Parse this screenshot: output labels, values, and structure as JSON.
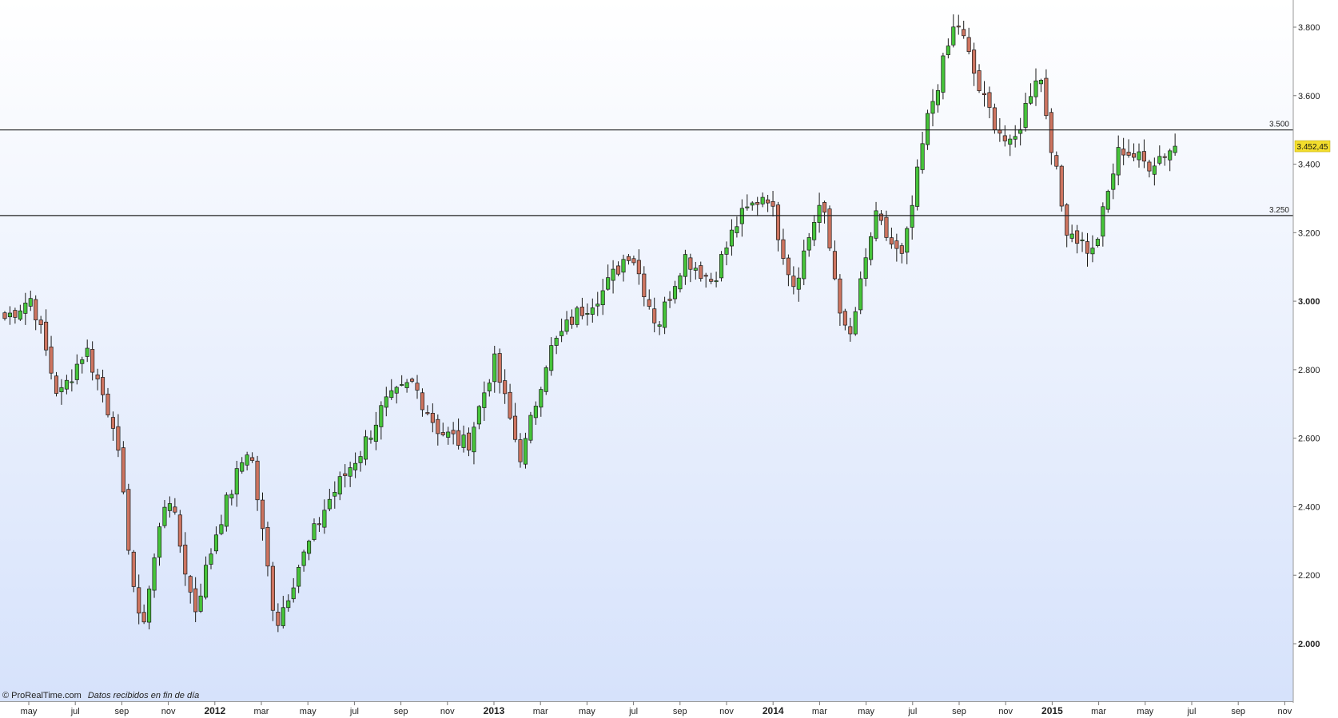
{
  "chart_data": {
    "type": "candlestick",
    "interval": "weekly",
    "y_axis": {
      "range": [
        1880,
        3880
      ],
      "ticks": [
        {
          "value": 2000,
          "label": "2.000",
          "bold": true
        },
        {
          "value": 2200,
          "label": "2.200",
          "bold": false
        },
        {
          "value": 2400,
          "label": "2.400",
          "bold": false
        },
        {
          "value": 2600,
          "label": "2.600",
          "bold": false
        },
        {
          "value": 2800,
          "label": "2.800",
          "bold": false
        },
        {
          "value": 3000,
          "label": "3.000",
          "bold": true
        },
        {
          "value": 3200,
          "label": "3.200",
          "bold": false
        },
        {
          "value": 3400,
          "label": "3.400",
          "bold": false
        },
        {
          "value": 3600,
          "label": "3.600",
          "bold": false
        },
        {
          "value": 3800,
          "label": "3.800",
          "bold": false
        }
      ]
    },
    "x_axis": {
      "start_label": "may",
      "months": [
        "may",
        "jul",
        "sep",
        "nov",
        "2012",
        "mar",
        "may",
        "jul",
        "sep",
        "nov",
        "2013",
        "mar",
        "may",
        "jul",
        "sep",
        "nov",
        "2014",
        "mar",
        "may",
        "jul",
        "sep",
        "nov",
        "2015",
        "mar",
        "may",
        "jul",
        "sep",
        "nov"
      ],
      "bold_labels": [
        "2012",
        "2013",
        "2014",
        "2015"
      ]
    },
    "horizontal_lines": [
      {
        "value": 3500,
        "label": "3.500"
      },
      {
        "value": 3250,
        "label": "3.250"
      }
    ],
    "last_price": {
      "value": 3452.45,
      "label": "3.452,45"
    },
    "waypoints": [
      2950,
      3010,
      2720,
      2860,
      2650,
      2030,
      2450,
      2100,
      2380,
      2580,
      2060,
      2260,
      2430,
      2550,
      2700,
      2760,
      2620,
      2580,
      2820,
      2540,
      2850,
      2960,
      3030,
      3150,
      2930,
      3130,
      3060,
      3240,
      3320,
      3050,
      3290,
      2870,
      3240,
      3120,
      3560,
      3820,
      3580,
      3440,
      3680,
      3220,
      3140,
      3450,
      3400,
      3452
    ],
    "colors": {
      "up": "#46c43a",
      "down": "#cd7460",
      "outline": "#1a1a1a",
      "last_price_bg": "#f3de2d",
      "bg_top": "#ffffff",
      "bg_bottom": "#d6e2fb"
    },
    "credit": {
      "brand": "© ProRealTime.com",
      "note": "Datos recibidos en fin de día"
    }
  }
}
